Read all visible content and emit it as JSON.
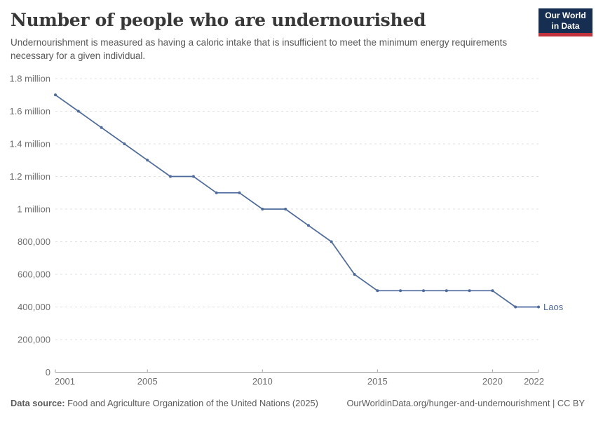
{
  "header": {
    "title": "Number of people who are undernourished",
    "subtitle": "Undernourishment is measured as having a caloric intake that is insufficient to meet the minimum energy requirements necessary for a given individual.",
    "logo": {
      "line1": "Our World",
      "line2": "in Data"
    }
  },
  "chart_data": {
    "type": "line",
    "title": "Number of people who are undernourished",
    "x": [
      2001,
      2002,
      2003,
      2004,
      2005,
      2006,
      2007,
      2008,
      2009,
      2010,
      2011,
      2012,
      2013,
      2014,
      2015,
      2016,
      2017,
      2018,
      2019,
      2020,
      2021,
      2022
    ],
    "series": [
      {
        "name": "Laos",
        "values": [
          1700000,
          1600000,
          1500000,
          1400000,
          1300000,
          1200000,
          1200000,
          1100000,
          1100000,
          1000000,
          1000000,
          900000,
          800000,
          600000,
          500000,
          500000,
          500000,
          500000,
          500000,
          500000,
          400000,
          400000
        ]
      }
    ],
    "xlim": [
      2001,
      2022
    ],
    "ylim": [
      0,
      1800000
    ],
    "x_ticks": [
      2001,
      2005,
      2010,
      2015,
      2020,
      2022
    ],
    "y_ticks": [
      {
        "value": 0,
        "label": "0"
      },
      {
        "value": 200000,
        "label": "200,000"
      },
      {
        "value": 400000,
        "label": "400,000"
      },
      {
        "value": 600000,
        "label": "600,000"
      },
      {
        "value": 800000,
        "label": "800,000"
      },
      {
        "value": 1000000,
        "label": "1 million"
      },
      {
        "value": 1200000,
        "label": "1.2 million"
      },
      {
        "value": 1400000,
        "label": "1.4 million"
      },
      {
        "value": 1600000,
        "label": "1.6 million"
      },
      {
        "value": 1800000,
        "label": "1.8 million"
      }
    ],
    "grid": true,
    "legend_position": "end-of-line",
    "line_color": "#4c6a9c",
    "gridline_color": "#dde1e4",
    "axis_color": "#a1a1a1",
    "tick_label_color": "#6e6e6e"
  },
  "footer": {
    "source_label": "Data source:",
    "source_text": " Food and Agriculture Organization of the United Nations (2025)",
    "link_text": "OurWorldinData.org/hunger-and-undernourishment | CC BY"
  }
}
